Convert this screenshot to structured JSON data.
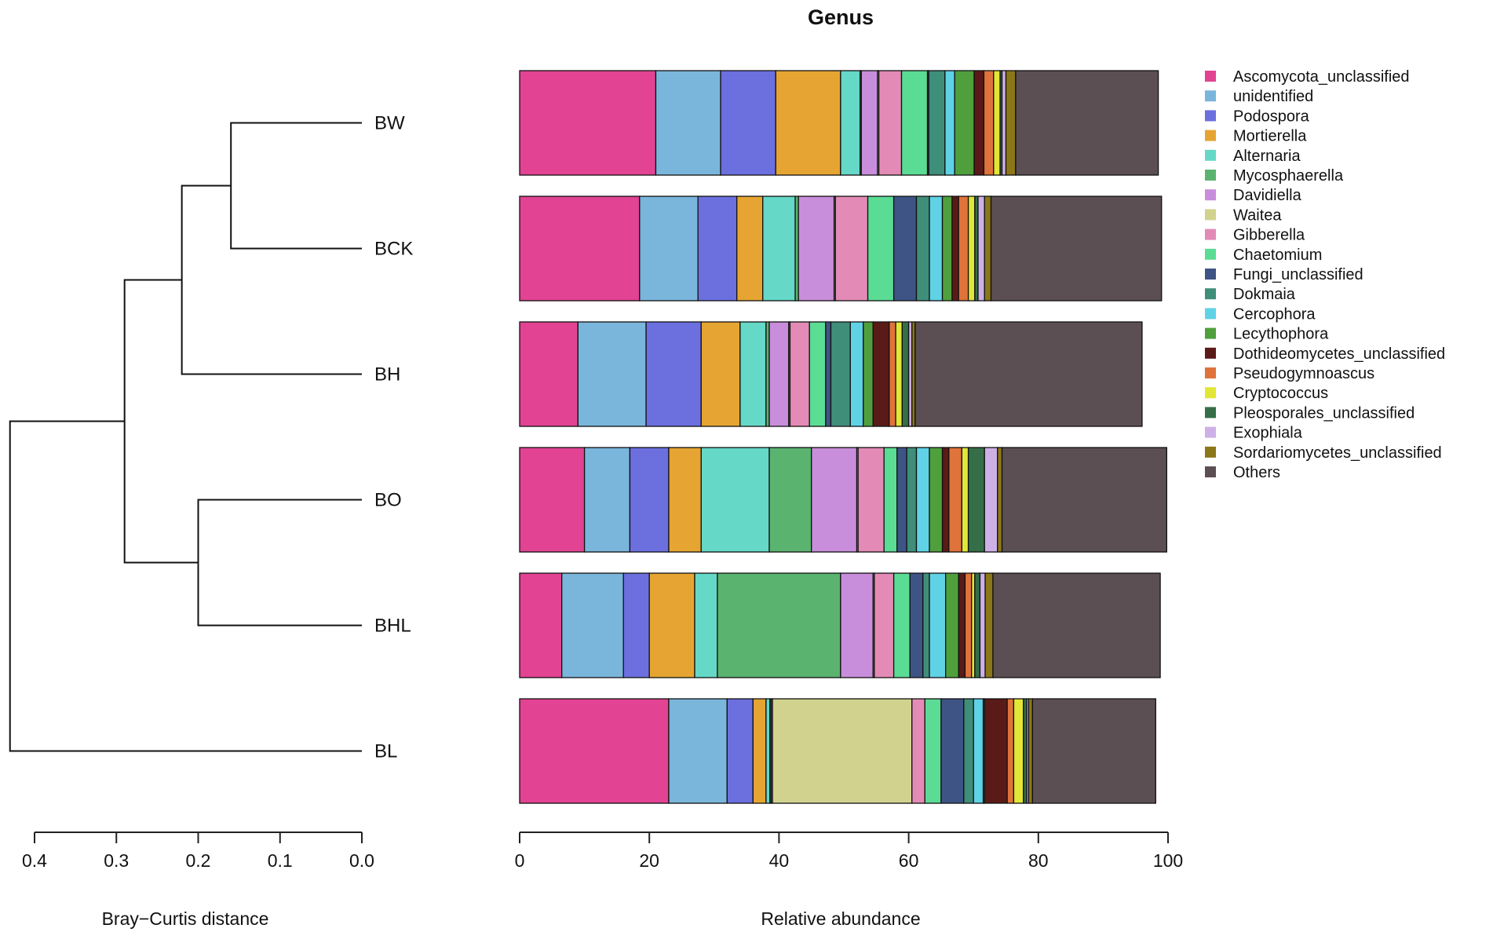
{
  "chart_data": {
    "type": "bar",
    "orientation": "horizontal",
    "stacked": true,
    "title": "Genus",
    "xlabel": "Relative abundance",
    "xlim": [
      0,
      100
    ],
    "xticks": [
      0,
      20,
      40,
      60,
      80,
      100
    ],
    "categories": [
      "BW",
      "BCK",
      "BH",
      "BO",
      "BHL",
      "BL"
    ],
    "series": [
      {
        "name": "Ascomycota_unclassified",
        "color": "#E24393",
        "values": [
          21.0,
          18.5,
          9.0,
          10.0,
          6.5,
          23.0
        ]
      },
      {
        "name": "unidentified",
        "color": "#7AB6DC",
        "values": [
          10.0,
          9.0,
          10.5,
          7.0,
          9.5,
          9.0
        ]
      },
      {
        "name": "Podospora",
        "color": "#6C6FDE",
        "values": [
          8.5,
          6.0,
          8.5,
          6.0,
          4.0,
          4.0
        ]
      },
      {
        "name": "Mortierella",
        "color": "#E6A532",
        "values": [
          10.0,
          4.0,
          6.0,
          5.0,
          7.0,
          2.0
        ]
      },
      {
        "name": "Alternaria",
        "color": "#66D8C7",
        "values": [
          3.0,
          5.0,
          4.0,
          10.5,
          3.5,
          0.6
        ]
      },
      {
        "name": "Mycosphaerella",
        "color": "#5BB370",
        "values": [
          0.2,
          0.5,
          0.5,
          6.5,
          19.0,
          0.2
        ]
      },
      {
        "name": "Davidiella",
        "color": "#C98EDB",
        "values": [
          2.5,
          5.5,
          3.0,
          7.0,
          5.0,
          0.2
        ]
      },
      {
        "name": "Waitea",
        "color": "#D1D28E",
        "values": [
          0.2,
          0.2,
          0.2,
          0.2,
          0.2,
          21.5
        ]
      },
      {
        "name": "Gibberella",
        "color": "#E38BB6",
        "values": [
          3.5,
          5.0,
          3.0,
          4.0,
          3.0,
          2.0
        ]
      },
      {
        "name": "Chaetomium",
        "color": "#5BDC94",
        "values": [
          4.0,
          4.0,
          2.5,
          2.0,
          2.5,
          2.5
        ]
      },
      {
        "name": "Fungi_unclassified",
        "color": "#3D5485",
        "values": [
          0.2,
          3.5,
          0.8,
          1.5,
          2.0,
          3.5
        ]
      },
      {
        "name": "Dokmaia",
        "color": "#3F8E7A",
        "values": [
          2.5,
          2.0,
          3.0,
          1.5,
          1.0,
          1.5
        ]
      },
      {
        "name": "Cercophora",
        "color": "#5FD2E6",
        "values": [
          1.5,
          2.0,
          2.0,
          2.0,
          2.5,
          1.5
        ]
      },
      {
        "name": "Lecythophora",
        "color": "#4FA03C",
        "values": [
          3.0,
          1.5,
          1.5,
          2.0,
          2.0,
          0.2
        ]
      },
      {
        "name": "Dothideomycetes_unclassified",
        "color": "#5A1A17",
        "values": [
          1.5,
          1.0,
          2.5,
          1.0,
          1.0,
          3.5
        ]
      },
      {
        "name": "Pseudogymnoascus",
        "color": "#E0733A",
        "values": [
          1.5,
          1.5,
          1.0,
          2.0,
          1.0,
          1.0
        ]
      },
      {
        "name": "Cryptococcus",
        "color": "#E2E636",
        "values": [
          1.0,
          1.0,
          1.0,
          1.0,
          0.5,
          1.5
        ]
      },
      {
        "name": "Pleosporales_unclassified",
        "color": "#356E47",
        "values": [
          0.3,
          0.5,
          1.0,
          2.5,
          0.8,
          0.5
        ]
      },
      {
        "name": "Exophiala",
        "color": "#CDB1E6",
        "values": [
          0.6,
          1.0,
          0.5,
          2.0,
          0.8,
          0.3
        ]
      },
      {
        "name": "Sordariomycetes_unclassified",
        "color": "#8B7717",
        "values": [
          1.5,
          1.0,
          0.5,
          0.7,
          1.2,
          0.6
        ]
      },
      {
        "name": "Others",
        "color": "#5C4F54",
        "values": [
          22.0,
          26.3,
          35.0,
          25.4,
          25.8,
          19.0
        ]
      }
    ],
    "legend_position": "right",
    "dendrogram": {
      "xlabel": "Bray−Curtis distance",
      "xlim": [
        0.4,
        0.0
      ],
      "ticks": [
        0.4,
        0.3,
        0.2,
        0.1,
        0.0
      ],
      "tick_labels": [
        "0.4",
        "0.3",
        "0.2",
        "0.1",
        "0.0"
      ],
      "merges": [
        {
          "a": "BW",
          "b": "BCK",
          "height": 0.16
        },
        {
          "a": "BW+BCK",
          "b": "BH",
          "height": 0.22
        },
        {
          "a": "BO",
          "b": "BHL",
          "height": 0.2
        },
        {
          "a": "BW+BCK+BH",
          "b": "BO+BHL",
          "height": 0.29
        },
        {
          "a": "ALL5",
          "b": "BL",
          "height": 0.43
        }
      ]
    }
  }
}
